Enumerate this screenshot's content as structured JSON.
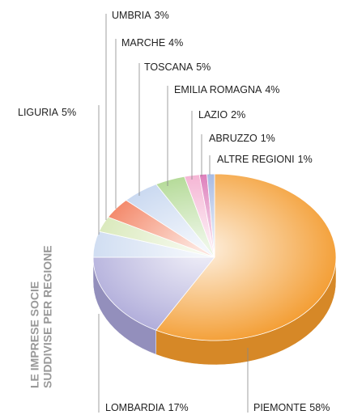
{
  "chart_data": {
    "type": "pie3d",
    "title": "LE IMPRESE SOCIE",
    "subtitle": "SUDDIVISE PER REGIONE",
    "categories": [
      "PIEMONTE",
      "LOMBARDIA",
      "LIGURIA",
      "UMBRIA",
      "MARCHE",
      "TOSCANA",
      "EMILIA ROMAGNA",
      "LAZIO",
      "ABRUZZO",
      "ALTRE REGIONI"
    ],
    "values": [
      58,
      17,
      5,
      3,
      4,
      5,
      4,
      2,
      1,
      1
    ],
    "value_labels": [
      "58%",
      "17%",
      "5%",
      "3%",
      "4%",
      "5%",
      "4%",
      "2%",
      "1%",
      "1%"
    ],
    "colors": [
      "#f39a2c",
      "#a7a3d6",
      "#c3d4ee",
      "#cfe3a8",
      "#f0643c",
      "#b9cdec",
      "#9fd07a",
      "#f2a0c8",
      "#d45aa8",
      "#8fa8dc"
    ]
  }
}
